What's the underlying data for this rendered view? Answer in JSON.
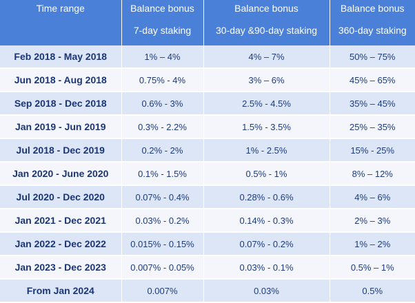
{
  "header": {
    "col1_line1": "Time range",
    "col2_line1": "Balance bonus",
    "col2_line2": "7-day staking",
    "col3_line1": "Balance bonus",
    "col3_line2": "30-day &90-day staking",
    "col4_line1": "Balance bonus",
    "col4_line2": "360-day staking"
  },
  "rows": [
    {
      "range": "Feb 2018 - May 2018",
      "d7": "1% – 4%",
      "d30_90": "4% – 7%",
      "d360": "50% – 75%"
    },
    {
      "range": "Jun 2018 - Aug 2018",
      "d7": "0.75% - 4%",
      "d30_90": "3% – 6%",
      "d360": "45% – 65%"
    },
    {
      "range": "Sep 2018 - Dec 2018",
      "d7": "0.6% - 3%",
      "d30_90": "2.5% - 4.5%",
      "d360": "35% – 45%"
    },
    {
      "range": "Jan 2019 - Jun 2019",
      "d7": "0.3% - 2.2%",
      "d30_90": "1.5% - 3.5%",
      "d360": "25% – 35%"
    },
    {
      "range": "Jul 2018 - Dec 2019",
      "d7": "0.2% - 2%",
      "d30_90": "1% - 2.5%",
      "d360": "15% - 25%"
    },
    {
      "range": "Jan 2020 - June 2020",
      "d7": "0.1% - 1.5%",
      "d30_90": "0.5% - 1%",
      "d360": "8% – 12%"
    },
    {
      "range": "Jul 2020 - Dec 2020",
      "d7": "0.07% - 0.4%",
      "d30_90": "0.28% - 0.6%",
      "d360": "4% – 6%"
    },
    {
      "range": "Jan 2021 - Dec 2021",
      "d7": "0.03% - 0.2%",
      "d30_90": "0.14% - 0.3%",
      "d360": "2% – 3%"
    },
    {
      "range": "Jan 2022 - Dec 2022",
      "d7": "0.015% - 0.15%",
      "d30_90": "0.07% - 0.2%",
      "d360": "1% – 2%"
    },
    {
      "range": "Jan 2023 - Dec 2023",
      "d7": "0.007% - 0.05%",
      "d30_90": "0.03% - 0.1%",
      "d360": "0.5% – 1%"
    },
    {
      "range": "From Jan 2024",
      "d7": "0.007%",
      "d30_90": "0.03%",
      "d360": "0.5%"
    }
  ],
  "colors": {
    "header_bg": "#4a80d8",
    "row_odd": "#dde6f7",
    "row_even": "#f4f6fb",
    "text": "#1b3575"
  }
}
